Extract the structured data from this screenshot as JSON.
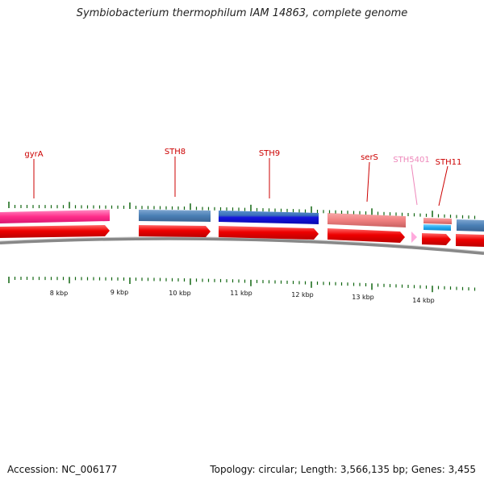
{
  "title": "Symbiobacterium thermophilum IAM 14863, complete genome",
  "footer": {
    "accession": "Accession: NC_006177",
    "summary": "Topology: circular; Length: 3,566,135 bp; Genes: 3,455"
  },
  "gene_labels": [
    {
      "id": "gyrA",
      "text": "gyrA",
      "color": "#cc0000"
    },
    {
      "id": "sth8",
      "text": "STH8",
      "color": "#cc0000"
    },
    {
      "id": "sth9",
      "text": "STH9",
      "color": "#cc0000"
    },
    {
      "id": "sers",
      "text": "serS",
      "color": "#cc0000"
    },
    {
      "id": "sth5401",
      "text": "STH5401",
      "color": "#ee88bb"
    },
    {
      "id": "sth11",
      "text": "STH11",
      "color": "#cc0000"
    }
  ],
  "kbp_labels": [
    "8 kbp",
    "9 kbp",
    "10 kbp",
    "11 kbp",
    "12 kbp",
    "13 kbp",
    "14 kbp"
  ],
  "colors": {
    "forward_gene": "#ee0000",
    "gyrA_feature": "#ff2e8a",
    "steel_feature": "#4a7fb5",
    "blue_feature": "#1515dd",
    "salmon_feature": "#f08080",
    "cyan_feature": "#22aaee",
    "pink_arrow": "#ffaadd",
    "tick": "#116611",
    "backbone": "#888888"
  }
}
